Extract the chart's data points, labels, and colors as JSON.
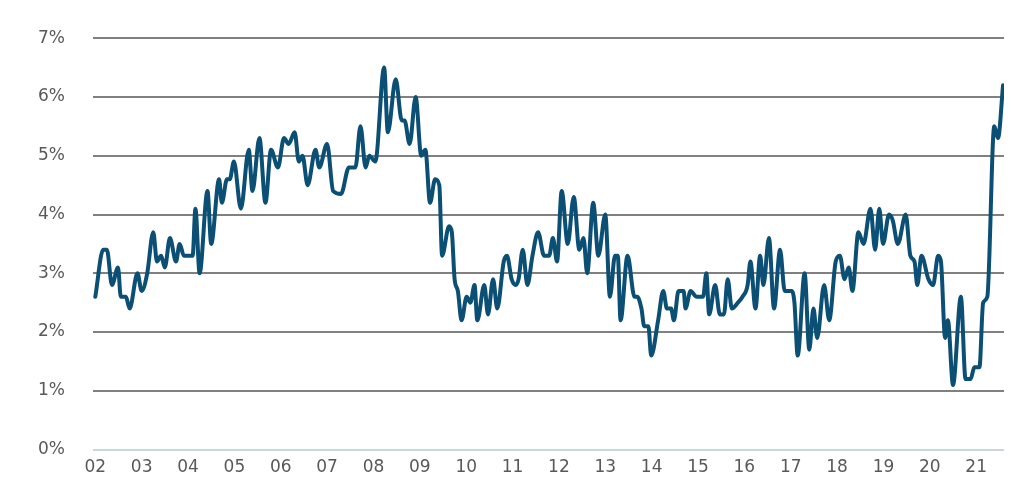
{
  "chart_data": {
    "type": "line",
    "x": [
      2002.0,
      2002.17,
      2002.25,
      2002.36,
      2002.49,
      2002.55,
      2002.66,
      2002.74,
      2002.91,
      2003.0,
      2003.12,
      2003.25,
      2003.33,
      2003.42,
      2003.5,
      2003.61,
      2003.74,
      2003.82,
      2003.91,
      2004.1,
      2004.16,
      2004.25,
      2004.42,
      2004.5,
      2004.67,
      2004.73,
      2004.84,
      2004.9,
      2004.99,
      2005.14,
      2005.31,
      2005.39,
      2005.54,
      2005.67,
      2005.79,
      2005.94,
      2006.07,
      2006.17,
      2006.3,
      2006.39,
      2006.47,
      2006.58,
      2006.75,
      2006.83,
      2007.0,
      2007.13,
      2007.3,
      2007.47,
      2007.61,
      2007.72,
      2007.83,
      2007.91,
      2008.04,
      2008.23,
      2008.31,
      2008.48,
      2008.61,
      2008.67,
      2008.78,
      2008.91,
      2009.03,
      2009.12,
      2009.22,
      2009.33,
      2009.42,
      2009.48,
      2009.63,
      2009.69,
      2009.75,
      2009.82,
      2009.9,
      2010.01,
      2010.09,
      2010.18,
      2010.24,
      2010.39,
      2010.47,
      2010.58,
      2010.67,
      2010.81,
      2010.88,
      2010.98,
      2011.07,
      2011.13,
      2011.22,
      2011.32,
      2011.43,
      2011.55,
      2011.68,
      2011.79,
      2011.87,
      2011.96,
      2012.06,
      2012.19,
      2012.32,
      2012.44,
      2012.53,
      2012.61,
      2012.74,
      2012.85,
      2013.0,
      2013.1,
      2013.21,
      2013.27,
      2013.33,
      2013.48,
      2013.63,
      2013.69,
      2013.78,
      2013.84,
      2013.93,
      2013.99,
      2014.14,
      2014.25,
      2014.33,
      2014.42,
      2014.48,
      2014.58,
      2014.69,
      2014.73,
      2014.84,
      2014.97,
      2015.11,
      2015.18,
      2015.24,
      2015.37,
      2015.47,
      2015.56,
      2015.64,
      2015.73,
      2015.86,
      2015.96,
      2016.07,
      2016.13,
      2016.24,
      2016.34,
      2016.41,
      2016.53,
      2016.64,
      2016.77,
      2016.87,
      2017.02,
      2017.08,
      2017.15,
      2017.3,
      2017.4,
      2017.49,
      2017.57,
      2017.72,
      2017.83,
      2017.97,
      2018.06,
      2018.16,
      2018.25,
      2018.33,
      2018.46,
      2018.57,
      2018.72,
      2018.82,
      2018.91,
      2018.99,
      2019.12,
      2019.2,
      2019.31,
      2019.48,
      2019.58,
      2019.67,
      2019.73,
      2019.82,
      2019.97,
      2020.07,
      2020.18,
      2020.24,
      2020.33,
      2020.39,
      2020.5,
      2020.67,
      2020.77,
      2020.88,
      2020.96,
      2021.07,
      2021.15,
      2021.24,
      2021.39,
      2021.47,
      2021.58
    ],
    "series": [
      {
        "color": "#0b4f75",
        "values": [
          2.6,
          3.4,
          3.4,
          2.8,
          3.1,
          2.6,
          2.6,
          2.4,
          3.0,
          2.7,
          3.0,
          3.7,
          3.2,
          3.3,
          3.1,
          3.6,
          3.2,
          3.5,
          3.3,
          3.3,
          4.1,
          3.0,
          4.4,
          3.5,
          4.6,
          4.2,
          4.6,
          4.6,
          4.9,
          4.1,
          5.1,
          4.4,
          5.3,
          4.2,
          5.1,
          4.8,
          5.3,
          5.2,
          5.4,
          4.9,
          5.0,
          4.5,
          5.1,
          4.8,
          5.2,
          4.4,
          4.35,
          4.8,
          4.8,
          5.5,
          4.8,
          5.0,
          4.9,
          6.5,
          5.4,
          6.3,
          5.6,
          5.6,
          5.2,
          6.0,
          5.0,
          5.1,
          4.2,
          4.6,
          4.5,
          3.3,
          3.8,
          3.7,
          2.9,
          2.7,
          2.2,
          2.6,
          2.5,
          2.8,
          2.2,
          2.8,
          2.3,
          2.9,
          2.4,
          3.2,
          3.3,
          2.9,
          2.8,
          2.9,
          3.4,
          2.8,
          3.3,
          3.7,
          3.3,
          3.3,
          3.6,
          3.2,
          4.4,
          3.5,
          4.3,
          3.4,
          3.6,
          3.0,
          4.2,
          3.3,
          4.0,
          2.6,
          3.3,
          3.3,
          2.2,
          3.3,
          2.6,
          2.6,
          2.4,
          2.1,
          2.1,
          1.6,
          2.2,
          2.7,
          2.4,
          2.4,
          2.2,
          2.7,
          2.7,
          2.4,
          2.7,
          2.6,
          2.6,
          3.0,
          2.3,
          2.8,
          2.3,
          2.3,
          2.9,
          2.4,
          2.5,
          2.6,
          2.8,
          3.2,
          2.4,
          3.3,
          2.8,
          3.6,
          2.4,
          3.4,
          2.7,
          2.7,
          2.5,
          1.6,
          3.0,
          1.7,
          2.4,
          1.9,
          2.8,
          2.2,
          3.2,
          3.3,
          2.9,
          3.1,
          2.7,
          3.7,
          3.5,
          4.1,
          3.4,
          4.1,
          3.5,
          4.0,
          3.9,
          3.5,
          4.0,
          3.3,
          3.2,
          2.8,
          3.3,
          2.9,
          2.8,
          3.3,
          3.2,
          1.9,
          2.2,
          1.1,
          2.6,
          1.2,
          1.2,
          1.4,
          1.4,
          2.5,
          2.6,
          5.5,
          5.3,
          6.2
        ]
      }
    ],
    "xlim": [
      2001.95,
      2021.6
    ],
    "xticks": [
      {
        "value": 2002,
        "label": "02"
      },
      {
        "value": 2003,
        "label": "03"
      },
      {
        "value": 2004,
        "label": "04"
      },
      {
        "value": 2005,
        "label": "05"
      },
      {
        "value": 2006,
        "label": "06"
      },
      {
        "value": 2007,
        "label": "07"
      },
      {
        "value": 2008,
        "label": "08"
      },
      {
        "value": 2009,
        "label": "09"
      },
      {
        "value": 2010,
        "label": "10"
      },
      {
        "value": 2011,
        "label": "11"
      },
      {
        "value": 2012,
        "label": "12"
      },
      {
        "value": 2013,
        "label": "13"
      },
      {
        "value": 2014,
        "label": "14"
      },
      {
        "value": 2015,
        "label": "15"
      },
      {
        "value": 2016,
        "label": "16"
      },
      {
        "value": 2017,
        "label": "17"
      },
      {
        "value": 2018,
        "label": "18"
      },
      {
        "value": 2019,
        "label": "19"
      },
      {
        "value": 2020,
        "label": "20"
      },
      {
        "value": 2021,
        "label": "21"
      }
    ],
    "ylim": [
      0,
      7
    ],
    "yticks": [
      {
        "value": 0,
        "label": "0%"
      },
      {
        "value": 1,
        "label": "1%"
      },
      {
        "value": 2,
        "label": "2%"
      },
      {
        "value": 3,
        "label": "3%"
      },
      {
        "value": 4,
        "label": "4%"
      },
      {
        "value": 5,
        "label": "5%"
      },
      {
        "value": 6,
        "label": "6%"
      },
      {
        "value": 7,
        "label": "7%"
      }
    ],
    "grid": "y",
    "legend": false,
    "marker": "none",
    "line_style": "solid"
  }
}
